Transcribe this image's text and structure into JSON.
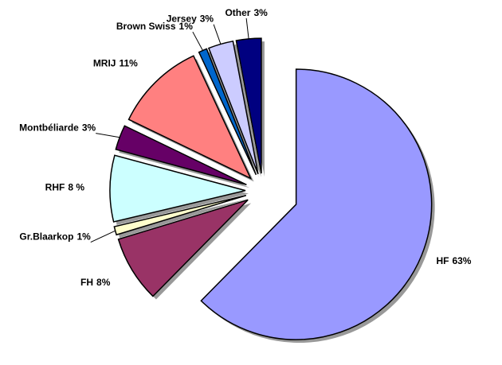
{
  "chart_data": {
    "type": "pie",
    "categories": [
      "HF",
      "FH",
      "Gr.Blaarkop",
      "RHF",
      "Montbéliarde",
      "MRIJ",
      "Brown Swiss",
      "Jersey",
      "Other"
    ],
    "values": [
      63,
      8,
      1,
      8,
      3,
      11,
      1,
      3,
      3
    ],
    "value_labels": [
      "63%",
      "8%",
      "1%",
      "8 %",
      "3%",
      "11%",
      "1%",
      "3%",
      "3%"
    ],
    "colors": [
      "#9999ff",
      "#993366",
      "#ffffcc",
      "#ccffff",
      "#660066",
      "#ff8080",
      "#0066cc",
      "#ccccff",
      "#000080"
    ]
  }
}
